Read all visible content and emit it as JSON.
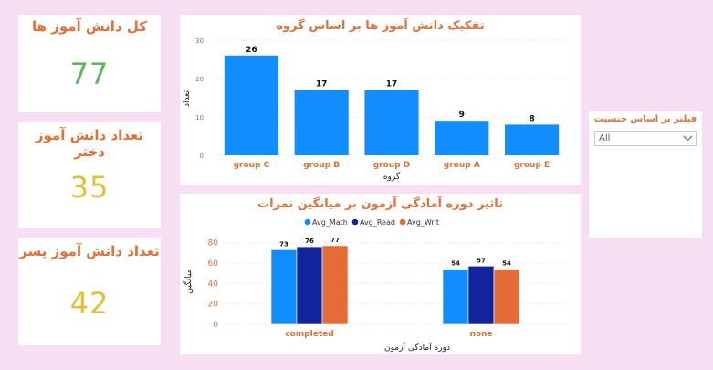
{
  "kpis": [
    {
      "title": "کل دانش آموز ها",
      "value": "77",
      "color": "#5cb85c"
    },
    {
      "title": "تعداد دانش آموز دختر",
      "value": "35",
      "color": "#e0c03a"
    },
    {
      "title": "تعداد دانش آموز پسر",
      "value": "42",
      "color": "#e0c03a"
    }
  ],
  "colors": {
    "accent": "#e0713a",
    "bar_primary": "#118dff",
    "avg_math": "#118dff",
    "avg_read": "#12239e",
    "avg_writ": "#e66c37",
    "background": "#f6def3"
  },
  "filter": {
    "title": "فیلتر بر اساس جنسیت",
    "value": "All",
    "icon": "chevron-down-icon"
  },
  "chart_data": [
    {
      "type": "bar",
      "title": "تفکیک دانش آموز ها بر اساس گروه",
      "xlabel": "گروه",
      "ylabel": "تعداد",
      "categories": [
        "group C",
        "group B",
        "group D",
        "group A",
        "group E"
      ],
      "values": [
        26,
        17,
        17,
        9,
        8
      ],
      "yticks": [
        0,
        10,
        20,
        30
      ],
      "ylim": [
        0,
        30
      ],
      "grid": true
    },
    {
      "type": "bar",
      "title": "تاثیر دوره آمادگی آزمون بر میانگین نمرات",
      "xlabel": "دوره آمادگی آزمون",
      "ylabel": "میانگین",
      "categories": [
        "completed",
        "none"
      ],
      "series": [
        {
          "name": "Avg_Math",
          "values": [
            73,
            54
          ]
        },
        {
          "name": "Avg_Read",
          "values": [
            76,
            57
          ]
        },
        {
          "name": "Avg_Writ",
          "values": [
            77,
            54
          ]
        }
      ],
      "yticks": [
        0,
        20,
        40,
        60,
        80
      ],
      "ylim": [
        0,
        85
      ],
      "legend": "top-center",
      "grid": true
    }
  ]
}
